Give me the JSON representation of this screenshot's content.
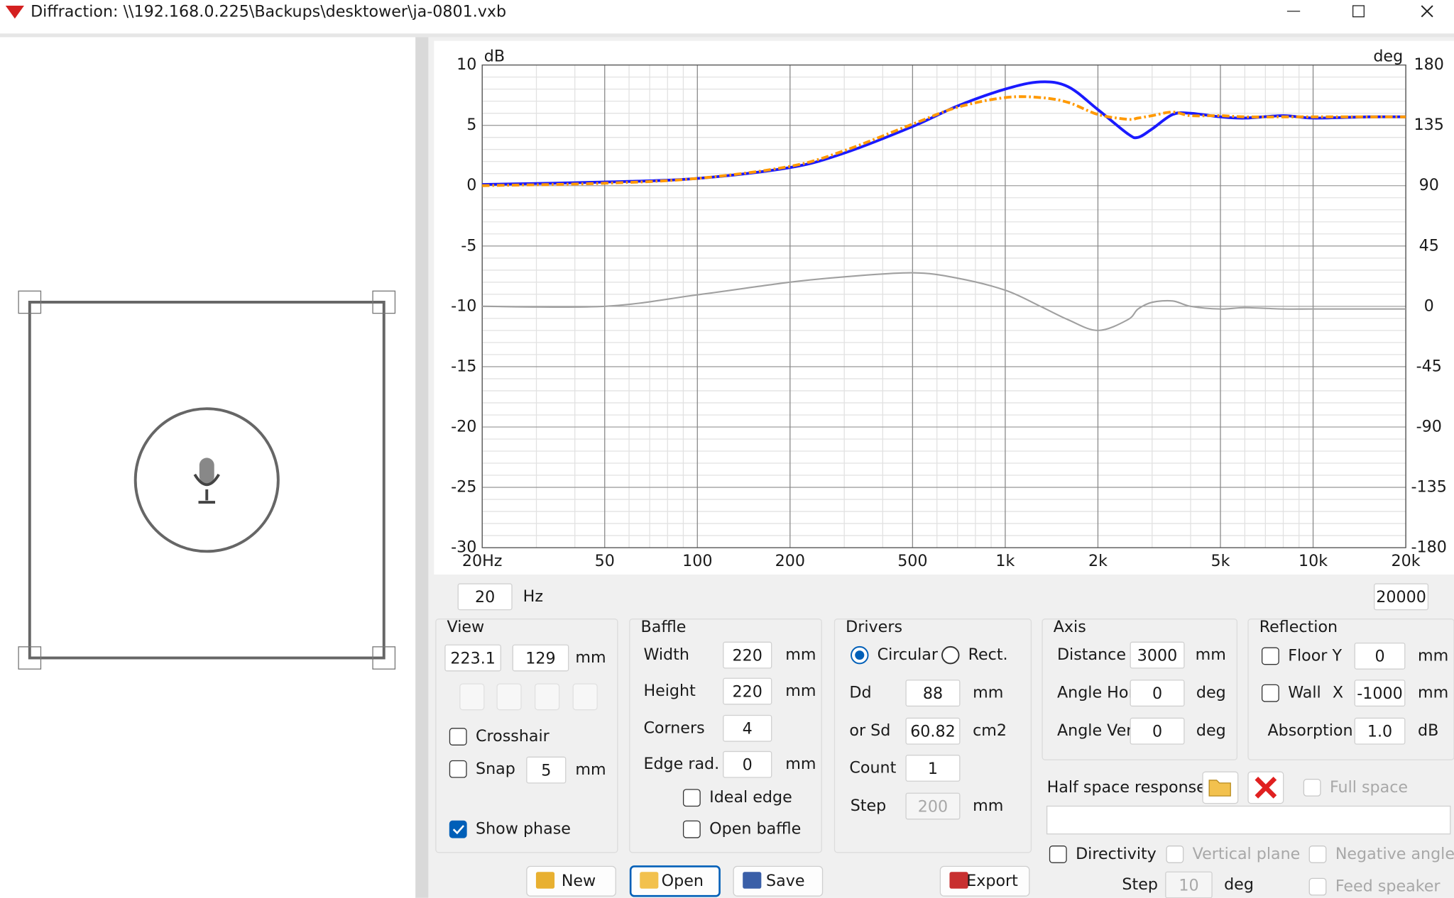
{
  "ui": {
    "title": "Diffraction: \\\\192.168.0.225\\Backups\\desktower\\ja-0801.vxb",
    "freq": {
      "min": "20",
      "unit": "Hz",
      "max": "20000"
    },
    "view": {
      "label": "View",
      "x": "223.1",
      "y": "129",
      "unit": "mm",
      "crosshair": {
        "label": "Crosshair",
        "checked": false
      },
      "snap": {
        "label": "Snap",
        "checked": false,
        "value": "5",
        "unit": "mm"
      },
      "show_phase": {
        "label": "Show phase",
        "checked": true
      }
    },
    "baffle": {
      "label": "Baffle",
      "width": {
        "label": "Width",
        "value": "220",
        "unit": "mm"
      },
      "height": {
        "label": "Height",
        "value": "220",
        "unit": "mm"
      },
      "corners": {
        "label": "Corners",
        "value": "4"
      },
      "edge_rad": {
        "label": "Edge rad.",
        "value": "0",
        "unit": "mm"
      },
      "ideal_edge": {
        "label": "Ideal edge",
        "checked": false
      },
      "open_baffle": {
        "label": "Open baffle",
        "checked": false
      }
    },
    "drivers": {
      "label": "Drivers",
      "circular": {
        "label": "Circular",
        "selected": true
      },
      "rect": {
        "label": "Rect.",
        "selected": false
      },
      "dd": {
        "label": "Dd",
        "value": "88",
        "unit": "mm"
      },
      "sd": {
        "label": "or Sd",
        "value": "60.82",
        "unit": "cm2"
      },
      "count": {
        "label": "Count",
        "value": "1"
      },
      "step": {
        "label": "Step",
        "value": "200",
        "unit": "mm",
        "enabled": false
      }
    },
    "axis": {
      "label": "Axis",
      "distance": {
        "label": "Distance",
        "value": "3000",
        "unit": "mm"
      },
      "angle_hor": {
        "label": "Angle Hor",
        "value": "0",
        "unit": "deg"
      },
      "angle_ver": {
        "label": "Angle Ver",
        "value": "0",
        "unit": "deg"
      }
    },
    "reflection": {
      "label": "Reflection",
      "floor": {
        "label": "Floor Y",
        "checked": false,
        "value": "0",
        "unit": "mm"
      },
      "wall": {
        "label": "Wall",
        "axis": "X",
        "checked": false,
        "value": "-1000",
        "unit": "mm"
      },
      "absorption": {
        "label": "Absorption",
        "value": "1.0",
        "unit": "dB"
      }
    },
    "half_space": {
      "label": "Half space response"
    },
    "full_space": {
      "label": "Full space",
      "checked": false,
      "enabled": false
    },
    "directivity": {
      "label": "Directivity",
      "checked": false
    },
    "vertical_plane": {
      "label": "Vertical plane",
      "checked": false,
      "enabled": false
    },
    "negative_angles": {
      "label": "Negative angles",
      "checked": false,
      "enabled": false
    },
    "dir_step": {
      "label": "Step",
      "value": "10",
      "unit": "deg",
      "enabled": false
    },
    "feed_speaker": {
      "label": "Feed speaker",
      "checked": false,
      "enabled": false
    },
    "buttons": {
      "new": "New",
      "open": "Open",
      "save": "Save",
      "export": "Export"
    }
  },
  "chart_data": {
    "type": "line",
    "ylabel": "dB",
    "y2label": "deg",
    "xscale": "log",
    "grid": true,
    "x": [
      20,
      50,
      100,
      200,
      300,
      500,
      700,
      1000,
      1300,
      1600,
      2000,
      2500,
      2700,
      3000,
      3500,
      4000,
      5000,
      6000,
      8000,
      10000,
      15000,
      20000
    ],
    "series": [
      {
        "color": "#1a1aff",
        "values": [
          0.1,
          0.3,
          0.6,
          1.5,
          2.7,
          4.9,
          6.6,
          8.0,
          8.6,
          8.2,
          6.3,
          4.3,
          4.0,
          4.7,
          5.9,
          6.0,
          5.7,
          5.6,
          5.8,
          5.6,
          5.7,
          5.7
        ]
      },
      {
        "color": "#ff9900",
        "dash": "dash-dot",
        "values": [
          0.0,
          0.2,
          0.6,
          1.6,
          2.9,
          5.1,
          6.5,
          7.3,
          7.3,
          6.9,
          5.9,
          5.5,
          5.6,
          5.8,
          6.1,
          5.8,
          5.8,
          5.7,
          5.7,
          5.7,
          5.7,
          5.7
        ]
      },
      {
        "color": "#a0a0a0",
        "axis": "y2",
        "values": [
          0,
          0,
          8.6,
          18,
          22,
          25,
          21,
          12,
          0,
          -10,
          -18,
          -10,
          -2,
          3,
          4,
          0,
          -2,
          -1,
          -2,
          -2,
          -2,
          -2
        ]
      }
    ],
    "xlim": [
      20,
      20000
    ],
    "xticks": [
      {
        "value": 20,
        "label": "20Hz"
      },
      50,
      100,
      200,
      500,
      {
        "value": 1000,
        "label": "1k"
      },
      {
        "value": 2000,
        "label": "2k"
      },
      {
        "value": 5000,
        "label": "5k"
      },
      {
        "value": 10000,
        "label": "10k"
      },
      {
        "value": 20000,
        "label": "20k"
      }
    ],
    "xminor": [
      30,
      40,
      60,
      70,
      80,
      90,
      300,
      400,
      600,
      700,
      800,
      900,
      3000,
      4000,
      6000,
      7000,
      8000,
      9000
    ],
    "ylim": [
      -30,
      10
    ],
    "yticks": [
      10,
      5,
      0,
      -5,
      -10,
      -15,
      -20,
      -25,
      -30
    ],
    "yminor": [
      9,
      8,
      7,
      6,
      4,
      3,
      2,
      1,
      -1,
      -2,
      -3,
      -4,
      -6,
      -7,
      -8,
      -9,
      -11,
      -12,
      -13,
      -14,
      -16,
      -17,
      -18,
      -19,
      -21,
      -22,
      -23,
      -24,
      -26,
      -27,
      -28,
      -29
    ],
    "y2lim": [
      -180,
      180
    ],
    "y2ticks": [
      180,
      135,
      90,
      45,
      0,
      -45,
      -90,
      -135,
      -180
    ]
  }
}
